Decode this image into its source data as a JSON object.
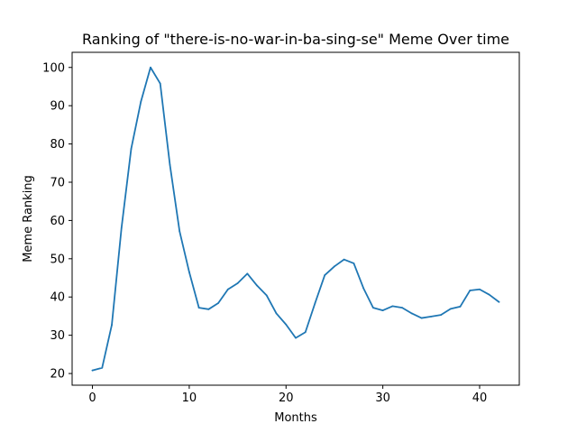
{
  "chart_data": {
    "type": "line",
    "title": "Ranking of \"there-is-no-war-in-ba-sing-se\" Meme Over time",
    "xlabel": "Months",
    "ylabel": "Meme Ranking",
    "xlim": [
      -2.1,
      44.1
    ],
    "ylim": [
      16.95,
      103.95
    ],
    "xticks": [
      0,
      10,
      20,
      30,
      40
    ],
    "yticks": [
      20,
      30,
      40,
      50,
      60,
      70,
      80,
      90,
      100
    ],
    "grid": false,
    "series": [
      {
        "color": "#1f77b4",
        "x": [
          0,
          1,
          2,
          3,
          4,
          5,
          6,
          7,
          8,
          9,
          10,
          11,
          12,
          13,
          14,
          15,
          16,
          17,
          18,
          19,
          20,
          21,
          22,
          23,
          24,
          25,
          26,
          27,
          28,
          29,
          30,
          31,
          32,
          33,
          34,
          35,
          36,
          37,
          38,
          39,
          40,
          41,
          42
        ],
        "y": [
          20.8,
          21.5,
          32.7,
          58.0,
          78.7,
          91.0,
          100.0,
          95.8,
          74.6,
          57.2,
          46.5,
          37.2,
          36.8,
          38.4,
          42.0,
          43.6,
          46.1,
          43.0,
          40.4,
          35.7,
          32.8,
          29.3,
          30.8,
          38.4,
          45.7,
          48.0,
          49.8,
          48.8,
          42.3,
          37.2,
          36.5,
          37.6,
          37.2,
          35.7,
          34.5,
          34.9,
          35.3,
          36.9,
          37.5,
          41.7,
          42.0,
          40.6,
          38.7
        ]
      }
    ]
  }
}
